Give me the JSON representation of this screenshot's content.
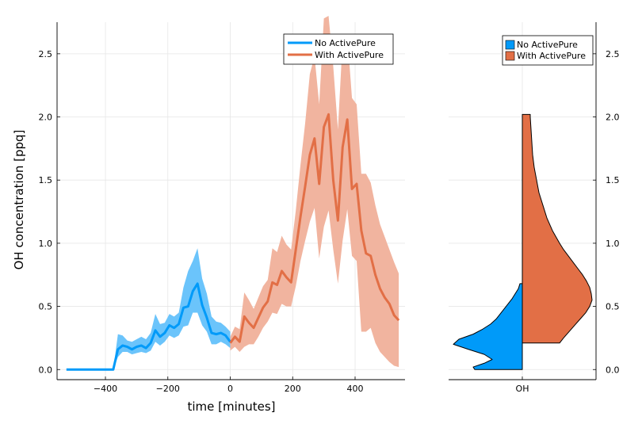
{
  "chart_data": [
    {
      "type": "line",
      "xlabel": "time [minutes]",
      "ylabel": "OH concentration [ppq]",
      "xlim": [
        -555,
        560
      ],
      "ylim": [
        -0.08,
        2.75
      ],
      "xticks": [
        -400,
        -200,
        0,
        200,
        400
      ],
      "xtick_labels": [
        "−400",
        "−200",
        "0",
        "200",
        "400"
      ],
      "yticks": [
        0,
        0.5,
        1.0,
        1.5,
        2.0,
        2.5
      ],
      "ytick_labels": [
        "0.0",
        "0.5",
        "1.0",
        "1.5",
        "2.0",
        "2.5"
      ],
      "grid": true,
      "legend": "top-right",
      "series": [
        {
          "name": "No ActivePure",
          "color": "#009af9",
          "band_color": "#6bc4fb",
          "x": [
            -525,
            -500,
            -475,
            -450,
            -425,
            -400,
            -375,
            -360,
            -345,
            -330,
            -315,
            -300,
            -285,
            -270,
            -255,
            -240,
            -225,
            -210,
            -195,
            -180,
            -165,
            -150,
            -135,
            -120,
            -105,
            -90,
            -75,
            -60,
            -45,
            -30,
            -15,
            0
          ],
          "y": [
            0,
            0,
            0,
            0,
            0,
            0,
            0,
            0.16,
            0.19,
            0.18,
            0.16,
            0.18,
            0.19,
            0.17,
            0.21,
            0.31,
            0.26,
            0.29,
            0.35,
            0.33,
            0.36,
            0.49,
            0.5,
            0.62,
            0.68,
            0.51,
            0.41,
            0.29,
            0.28,
            0.29,
            0.27,
            0.22
          ],
          "lower": [
            0,
            0,
            0,
            0,
            0,
            0,
            0,
            0.1,
            0.14,
            0.14,
            0.12,
            0.13,
            0.14,
            0.13,
            0.15,
            0.22,
            0.19,
            0.22,
            0.27,
            0.25,
            0.27,
            0.34,
            0.35,
            0.45,
            0.45,
            0.35,
            0.3,
            0.2,
            0.2,
            0.22,
            0.2,
            0.17
          ],
          "upper": [
            0,
            0,
            0,
            0,
            0,
            0,
            0,
            0.28,
            0.27,
            0.23,
            0.22,
            0.24,
            0.26,
            0.24,
            0.29,
            0.44,
            0.36,
            0.37,
            0.44,
            0.42,
            0.45,
            0.65,
            0.78,
            0.86,
            0.96,
            0.72,
            0.6,
            0.42,
            0.38,
            0.37,
            0.34,
            0.3
          ]
        },
        {
          "name": "With ActivePure",
          "color": "#e26f46",
          "band_color": "#f1b49f",
          "x": [
            0,
            15,
            30,
            45,
            60,
            75,
            90,
            105,
            120,
            135,
            150,
            165,
            180,
            195,
            210,
            225,
            240,
            255,
            270,
            285,
            300,
            315,
            330,
            345,
            360,
            375,
            390,
            405,
            420,
            435,
            450,
            465,
            480,
            495,
            510,
            525,
            540
          ],
          "y": [
            0.21,
            0.26,
            0.22,
            0.42,
            0.37,
            0.33,
            0.41,
            0.49,
            0.54,
            0.69,
            0.67,
            0.78,
            0.73,
            0.69,
            0.95,
            1.21,
            1.45,
            1.7,
            1.83,
            1.47,
            1.92,
            2.02,
            1.5,
            1.18,
            1.76,
            1.98,
            1.43,
            1.47,
            1.1,
            0.92,
            0.9,
            0.75,
            0.64,
            0.57,
            0.52,
            0.43,
            0.39
          ],
          "lower": [
            0.15,
            0.18,
            0.14,
            0.18,
            0.2,
            0.2,
            0.26,
            0.33,
            0.38,
            0.45,
            0.44,
            0.52,
            0.5,
            0.5,
            0.66,
            0.86,
            1.02,
            1.17,
            1.28,
            0.88,
            1.13,
            1.26,
            0.95,
            0.68,
            1.02,
            1.27,
            0.9,
            0.86,
            0.3,
            0.3,
            0.33,
            0.21,
            0.14,
            0.1,
            0.06,
            0.03,
            0.02
          ],
          "upper": [
            0.26,
            0.34,
            0.32,
            0.61,
            0.55,
            0.48,
            0.57,
            0.66,
            0.71,
            0.96,
            0.93,
            1.06,
            0.99,
            0.95,
            1.26,
            1.62,
            1.95,
            2.34,
            2.48,
            2.1,
            2.78,
            2.8,
            2.4,
            1.9,
            2.6,
            2.65,
            2.15,
            2.1,
            1.55,
            1.55,
            1.48,
            1.3,
            1.15,
            1.05,
            0.95,
            0.85,
            0.76
          ]
        }
      ]
    },
    {
      "type": "violin",
      "category": "OH",
      "ylim": [
        -0.08,
        2.75
      ],
      "yticks": [
        0,
        0.5,
        1.0,
        1.5,
        2.0,
        2.5
      ],
      "ytick_labels": [
        "0.0",
        "0.5",
        "1.0",
        "1.5",
        "2.0",
        "2.5"
      ],
      "legend": "top-right",
      "series": [
        {
          "name": "No ActivePure",
          "color": "#009af9",
          "side": "left",
          "y": [
            0,
            0.02,
            0.05,
            0.08,
            0.12,
            0.16,
            0.2,
            0.24,
            0.28,
            0.32,
            0.36,
            0.4,
            0.44,
            0.48,
            0.52,
            0.56,
            0.6,
            0.64,
            0.68
          ],
          "density": [
            0.6,
            0.62,
            0.48,
            0.38,
            0.48,
            0.68,
            0.87,
            0.8,
            0.62,
            0.5,
            0.4,
            0.33,
            0.28,
            0.23,
            0.18,
            0.13,
            0.09,
            0.05,
            0.03
          ]
        },
        {
          "name": "With ActivePure",
          "color": "#e26f46",
          "side": "right",
          "y": [
            0.21,
            0.25,
            0.3,
            0.35,
            0.4,
            0.45,
            0.5,
            0.55,
            0.6,
            0.65,
            0.7,
            0.75,
            0.8,
            0.85,
            0.9,
            0.95,
            1.0,
            1.1,
            1.2,
            1.3,
            1.4,
            1.5,
            1.6,
            1.7,
            1.8,
            1.9,
            2.0,
            2.02
          ],
          "density": [
            0.47,
            0.52,
            0.59,
            0.66,
            0.73,
            0.8,
            0.85,
            0.88,
            0.87,
            0.85,
            0.81,
            0.76,
            0.7,
            0.64,
            0.58,
            0.52,
            0.47,
            0.38,
            0.31,
            0.26,
            0.21,
            0.18,
            0.15,
            0.13,
            0.12,
            0.11,
            0.1,
            0.1
          ]
        }
      ]
    }
  ]
}
